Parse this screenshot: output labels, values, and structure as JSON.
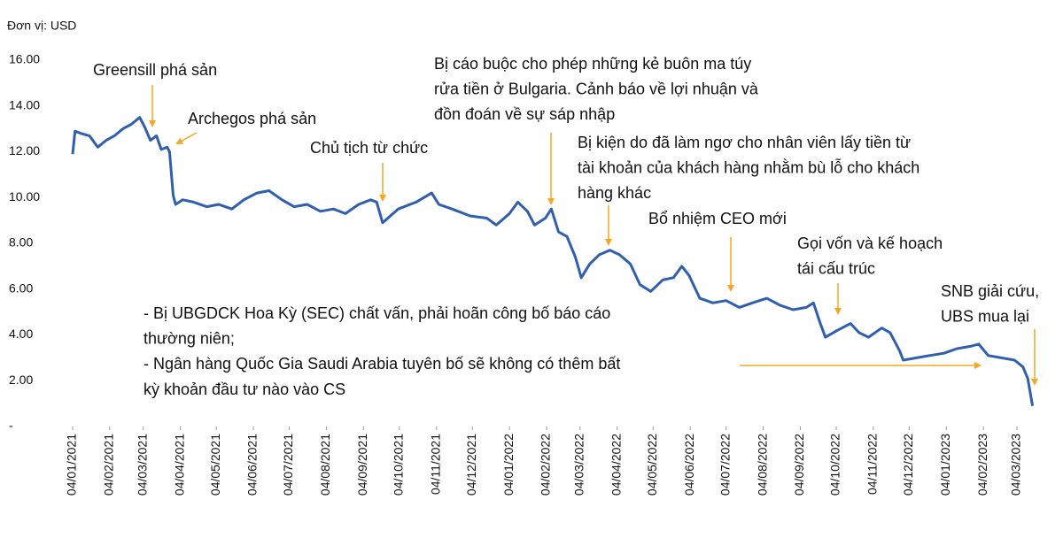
{
  "chart_data": {
    "type": "line",
    "unit_label": "Đơn vị: USD",
    "x": [
      "04/01/2021",
      "06/01/2021",
      "11/01/2021",
      "18/01/2021",
      "25/01/2021",
      "01/02/2021",
      "08/02/2021",
      "15/02/2021",
      "22/02/2021",
      "01/03/2021",
      "05/03/2021",
      "10/03/2021",
      "15/03/2021",
      "19/03/2021",
      "24/03/2021",
      "26/03/2021",
      "29/03/2021",
      "31/03/2021",
      "06/04/2021",
      "15/04/2021",
      "26/04/2021",
      "06/05/2021",
      "17/05/2021",
      "27/05/2021",
      "07/06/2021",
      "17/06/2021",
      "28/06/2021",
      "08/07/2021",
      "19/07/2021",
      "30/07/2021",
      "10/08/2021",
      "20/08/2021",
      "31/08/2021",
      "10/09/2021",
      "15/09/2021",
      "20/09/2021",
      "03/10/2021",
      "18/10/2021",
      "31/10/2021",
      "06/11/2021",
      "17/11/2021",
      "02/12/2021",
      "16/12/2021",
      "24/12/2021",
      "04/01/2022",
      "11/01/2022",
      "19/01/2022",
      "25/01/2022",
      "03/02/2022",
      "08/02/2022",
      "14/02/2022",
      "21/02/2022",
      "28/02/2022",
      "05/03/2022",
      "12/03/2022",
      "20/03/2022",
      "29/03/2022",
      "06/04/2022",
      "15/04/2022",
      "23/04/2022",
      "02/05/2022",
      "12/05/2022",
      "21/05/2022",
      "28/05/2022",
      "03/06/2022",
      "12/06/2022",
      "23/06/2022",
      "04/07/2022",
      "15/07/2022",
      "26/07/2022",
      "07/08/2022",
      "18/08/2022",
      "29/08/2022",
      "09/09/2022",
      "15/09/2022",
      "20/09/2022",
      "25/09/2022",
      "05/10/2022",
      "16/10/2022",
      "23/10/2022",
      "31/10/2022",
      "11/11/2022",
      "18/11/2022",
      "26/11/2022",
      "29/11/2022",
      "10/12/2022",
      "21/12/2022",
      "02/01/2023",
      "13/01/2023",
      "24/01/2023",
      "31/01/2023",
      "08/02/2023",
      "19/02/2023",
      "02/03/2023",
      "09/03/2023",
      "13/03/2023",
      "17/03/2023"
    ],
    "series": [
      {
        "color": "#2f5fad",
        "values": [
          11.9,
          12.9,
          12.8,
          12.7,
          12.2,
          12.5,
          12.7,
          13.0,
          13.2,
          13.5,
          13.1,
          12.5,
          12.7,
          12.1,
          12.2,
          12.0,
          10.1,
          9.7,
          9.9,
          9.8,
          9.6,
          9.7,
          9.5,
          9.9,
          10.2,
          10.3,
          9.9,
          9.6,
          9.7,
          9.4,
          9.5,
          9.3,
          9.7,
          9.9,
          9.8,
          8.9,
          9.5,
          9.8,
          10.2,
          9.7,
          9.5,
          9.2,
          9.1,
          8.8,
          9.3,
          9.8,
          9.4,
          8.8,
          9.1,
          9.5,
          8.5,
          8.3,
          7.4,
          6.5,
          7.1,
          7.5,
          7.7,
          7.5,
          7.1,
          6.2,
          5.9,
          6.4,
          6.5,
          7.0,
          6.6,
          5.6,
          5.4,
          5.5,
          5.2,
          5.4,
          5.6,
          5.3,
          5.1,
          5.2,
          5.4,
          4.6,
          3.9,
          4.2,
          4.5,
          4.1,
          3.9,
          4.3,
          4.1,
          3.3,
          2.9,
          3.0,
          3.1,
          3.2,
          3.4,
          3.5,
          3.6,
          3.1,
          3.0,
          2.9,
          2.6,
          2.1,
          0.9
        ]
      }
    ],
    "xticks": [
      "04/01/2021",
      "04/02/2021",
      "04/03/2021",
      "04/04/2021",
      "04/05/2021",
      "04/06/2021",
      "04/07/2021",
      "04/08/2021",
      "04/09/2021",
      "04/10/2021",
      "04/11/2021",
      "04/12/2021",
      "04/01/2022",
      "04/02/2022",
      "04/03/2022",
      "04/04/2022",
      "04/05/2022",
      "04/06/2022",
      "04/07/2022",
      "04/08/2022",
      "04/09/2022",
      "04/10/2022",
      "04/11/2022",
      "04/12/2022",
      "04/01/2023",
      "04/02/2023",
      "04/03/2023"
    ],
    "ylim": [
      0,
      16
    ],
    "yticks": [
      {
        "value": 0,
        "label": "-"
      },
      {
        "value": 2,
        "label": "2.00"
      },
      {
        "value": 4,
        "label": "4.00"
      },
      {
        "value": 6,
        "label": "6.00"
      },
      {
        "value": 8,
        "label": "8.00"
      },
      {
        "value": 10,
        "label": "10.00"
      },
      {
        "value": 12,
        "label": "12.00"
      },
      {
        "value": 14,
        "label": "14.00"
      },
      {
        "value": 16,
        "label": "16.00"
      }
    ],
    "annotation_color": "#f5a623",
    "annotations": [
      {
        "lines": [
          "Greensill phá sản"
        ]
      },
      {
        "lines": [
          "Archegos phá sản"
        ]
      },
      {
        "lines": [
          "Chủ tịch từ chức"
        ]
      },
      {
        "lines": [
          "Bị cáo buộc cho phép những kẻ buôn ma túy",
          "rửa tiền ở Bulgaria. Cảnh báo về lợi nhuận và",
          "đồn đoán về sự sáp nhập"
        ]
      },
      {
        "lines": [
          "Bị kiện do đã làm ngơ cho nhân viên lấy tiền từ",
          "tài khoản của khách hàng nhằm bù lỗ cho khách",
          "hàng khác"
        ]
      },
      {
        "lines": [
          "Bổ nhiệm CEO mới"
        ]
      },
      {
        "lines": [
          "Gọi vốn và kế hoạch",
          "tái cấu trúc"
        ]
      },
      {
        "lines": [
          "SNB giải cứu,",
          "UBS mua lại"
        ]
      },
      {
        "lines": [
          "- Bị UBGDCK Hoa Kỳ (SEC) chất vấn, phải hoãn công bố báo cáo",
          "thường niên;",
          "- Ngân hàng Quốc Gia Saudi Arabia tuyên bố sẽ không có thêm bất",
          "kỳ khoản đầu tư nào vào CS"
        ]
      }
    ]
  }
}
